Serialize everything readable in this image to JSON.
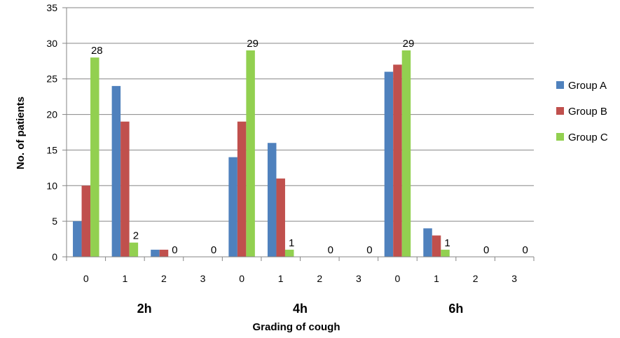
{
  "chart_data": {
    "type": "bar",
    "title": "",
    "xlabel": "Grading of cough",
    "ylabel": "No. of patients",
    "ylim": [
      0,
      35
    ],
    "yticks": [
      0,
      5,
      10,
      15,
      20,
      25,
      30,
      35
    ],
    "grid": true,
    "legend_position": "right",
    "groups": [
      "2h",
      "4h",
      "6h"
    ],
    "categories": [
      "0",
      "1",
      "2",
      "3",
      "0",
      "1",
      "2",
      "3",
      "0",
      "1",
      "2",
      "3"
    ],
    "series": [
      {
        "name": "Group A",
        "color": "#4f81bd",
        "values": [
          5,
          24,
          1,
          0,
          14,
          16,
          0,
          0,
          26,
          4,
          0,
          0
        ]
      },
      {
        "name": "Group B",
        "color": "#c0504d",
        "values": [
          10,
          19,
          1,
          0,
          19,
          11,
          0,
          0,
          27,
          3,
          0,
          0
        ]
      },
      {
        "name": "Group C",
        "color": "#92d050",
        "values": [
          28,
          2,
          0,
          0,
          29,
          1,
          0,
          0,
          29,
          1,
          0,
          0
        ]
      }
    ],
    "data_labels": {
      "series": "Group C",
      "values": [
        "28",
        "2",
        "0",
        "0",
        "29",
        "1",
        "0",
        "0",
        "29",
        "1",
        "0",
        "0"
      ]
    }
  }
}
